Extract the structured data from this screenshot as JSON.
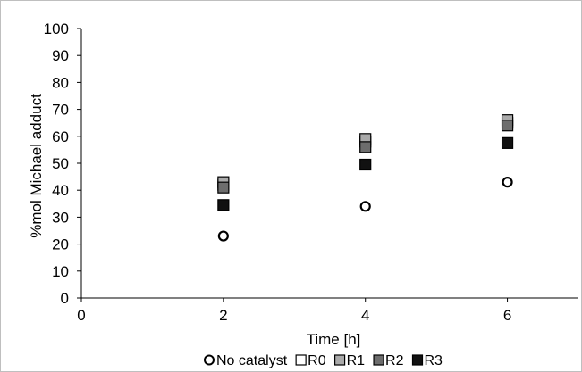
{
  "chart_data": {
    "type": "scatter",
    "title": "",
    "xlabel": "Time [h]",
    "ylabel": "%mol Michael adduct",
    "xlim": [
      0,
      7
    ],
    "ylim": [
      0,
      100
    ],
    "x_ticks": [
      "0",
      "2",
      "4",
      "6"
    ],
    "y_ticks": [
      "0",
      "10",
      "20",
      "30",
      "40",
      "50",
      "60",
      "70",
      "80",
      "90",
      "100"
    ],
    "grid": false,
    "legend_position": "bottom",
    "series": [
      {
        "name": "No catalyst",
        "marker": "circle",
        "color": "#ffffff",
        "x": [
          2,
          4,
          6
        ],
        "y": [
          23,
          34,
          43
        ]
      },
      {
        "name": "R0",
        "marker": "square",
        "color": "#ffffff",
        "x": [
          2,
          4,
          6
        ],
        "y": [
          42,
          58,
          65
        ]
      },
      {
        "name": "R1",
        "marker": "square",
        "color": "#aaaaaa",
        "x": [
          2,
          4,
          6
        ],
        "y": [
          43,
          59,
          66
        ]
      },
      {
        "name": "R2",
        "marker": "square",
        "color": "#6d6d6d",
        "x": [
          2,
          4,
          6
        ],
        "y": [
          41,
          56,
          64
        ]
      },
      {
        "name": "R3",
        "marker": "square",
        "color": "#111111",
        "x": [
          2,
          4,
          6
        ],
        "y": [
          34.5,
          49.5,
          57.5
        ]
      }
    ]
  }
}
